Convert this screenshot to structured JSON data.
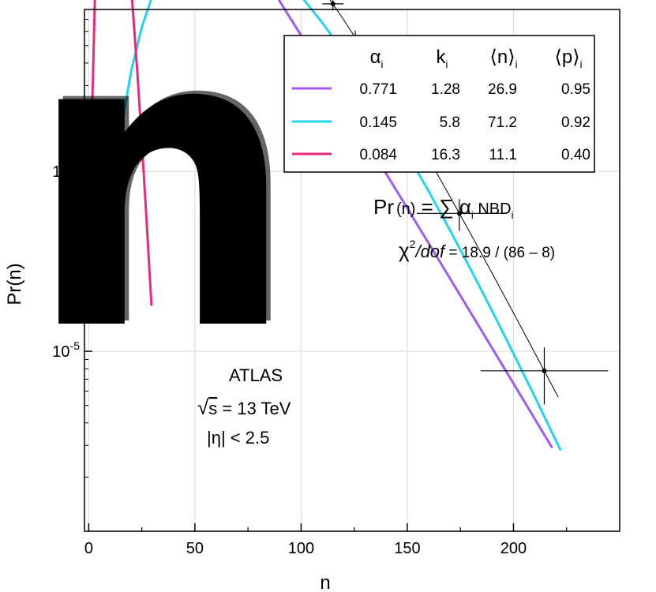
{
  "chart_data": {
    "type": "line",
    "xlabel": "n",
    "ylabel": "Pr(n)",
    "xlim": [
      -2,
      250
    ],
    "ylim_log10": [
      -6,
      -3.1
    ],
    "x_ticks": [
      0,
      50,
      100,
      150,
      200
    ],
    "y_ticks": [
      {
        "label": "10",
        "sup": "-4",
        "exp": -4
      },
      {
        "label": "10",
        "sup": "-5",
        "exp": -5
      }
    ],
    "grid": true,
    "series": [
      {
        "color": "#a05af0",
        "components": [
          {
            "alpha": 0.771,
            "k": 1.28,
            "nbar": 26.9
          }
        ],
        "x": [
          1,
          5,
          10,
          15,
          20,
          30,
          40,
          50,
          60,
          70,
          80,
          90,
          100,
          110,
          120,
          130,
          140,
          150,
          160,
          170,
          180,
          190,
          200,
          210,
          218
        ]
      },
      {
        "color": "#22d4ee",
        "components": [
          {
            "alpha": 0.145,
            "k": 5.8,
            "nbar": 71.2
          }
        ],
        "x": [
          7,
          10,
          15,
          20,
          25,
          30,
          40,
          50,
          60,
          70,
          80,
          90,
          100,
          110,
          120,
          130,
          140,
          150,
          160,
          170,
          180,
          190,
          200,
          210,
          222
        ]
      },
      {
        "color": "#e82a7a",
        "components": [
          {
            "alpha": 0.084,
            "k": 16.3,
            "nbar": 11.1
          }
        ],
        "x": [
          1,
          3,
          5,
          7,
          9,
          11,
          13,
          15,
          17,
          19,
          21,
          23,
          25,
          27,
          29.5
        ]
      },
      {
        "color": "#000000",
        "line_width": 1,
        "components": [
          {
            "alpha": 0.771,
            "k": 1.28,
            "nbar": 26.9
          },
          {
            "alpha": 0.145,
            "k": 5.8,
            "nbar": 71.2
          },
          {
            "alpha": 0.084,
            "k": 16.3,
            "nbar": 11.1
          }
        ],
        "x": [
          1,
          5,
          10,
          15,
          20,
          30,
          40,
          50,
          60,
          70,
          80,
          90,
          100,
          110,
          120,
          130,
          140,
          150,
          160,
          170,
          180,
          190,
          200,
          210,
          221
        ]
      }
    ],
    "data_points": {
      "dense": {
        "x_start": 5,
        "x_end": 98,
        "step": 1.5
      },
      "binned": [
        {
          "x": 105.5,
          "xerr": 2.5,
          "yerr_frac": 0.08
        },
        {
          "x": 115,
          "xerr": 5,
          "yerr_frac": 0.08
        },
        {
          "x": 125.5,
          "xerr": 5,
          "yerr_frac": 0.09
        },
        {
          "x": 142,
          "xerr": 10,
          "yerr_frac": 0.12
        },
        {
          "x": 174.5,
          "xerr": 20,
          "yerr_frac": 0.2
        },
        {
          "x": 214.5,
          "xerr": 30,
          "yerr_frac": 0.35
        }
      ]
    },
    "legend": {
      "headers": [
        "α",
        "k",
        "⟨n⟩",
        "⟨p⟩"
      ],
      "header_sub": "i",
      "rows": [
        {
          "color": "#a05af0",
          "alpha": "0.771",
          "k": "1.28",
          "n": "26.9",
          "p": "0.95"
        },
        {
          "color": "#22d4ee",
          "alpha": "0.145",
          "k": "5.8",
          "n": "71.2",
          "p": "0.92"
        },
        {
          "color": "#e82a7a",
          "alpha": "0.084",
          "k": "16.3",
          "n": "11.1",
          "p": "0.40"
        }
      ]
    },
    "formula": {
      "lhs": "Pr",
      "arg": "(n)",
      "eq": " = ∑ ",
      "alpha": "α",
      "sub": "i",
      "nbd": " NBD",
      "nbd_sub": "i"
    },
    "chi2": {
      "chi": "χ",
      "sup": "2",
      "dof": "/dof",
      "value": " = 18.9 / (86 – 8)"
    },
    "info": {
      "experiment": "ATLAS",
      "sqrt": "√",
      "s": "s",
      "energy": " =  13 TeV",
      "eta": "|η|  <  2.5"
    }
  },
  "overlay_glyph": "n"
}
